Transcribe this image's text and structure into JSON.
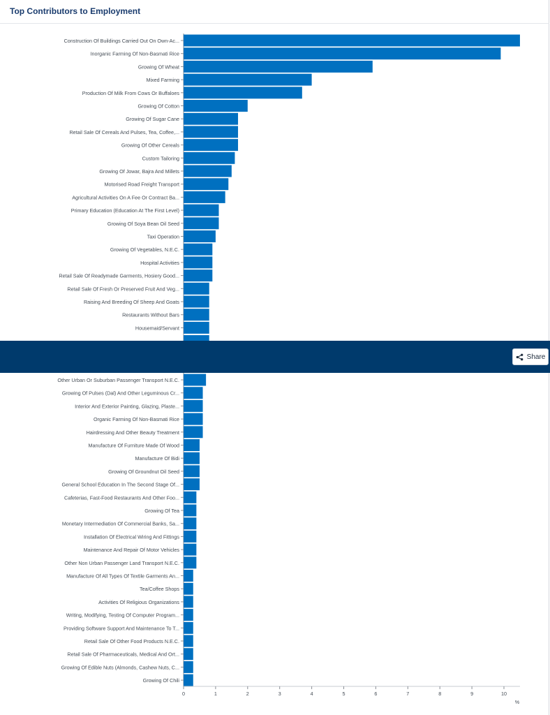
{
  "header": {
    "title": "Top Contributors to Employment"
  },
  "share": {
    "label": "Share",
    "icon": "share-icon"
  },
  "colors": {
    "bar": "#0070c0",
    "banner": "#003a6c",
    "title": "#1a3c6e"
  },
  "chart_data": {
    "type": "bar",
    "orientation": "horizontal",
    "title": "Top Contributors to Employment",
    "xlabel": "%",
    "ylabel": "",
    "xlim": [
      0,
      10.5
    ],
    "xticks": [
      "0",
      "1",
      "2",
      "3",
      "4",
      "5",
      "6",
      "7",
      "8",
      "9",
      "10"
    ],
    "top_categories": [
      "Construction Of Buildings Carried Out On Own-Ac...",
      "Inorganic Farming Of Non-Basmati Rice",
      "Growing Of Wheat",
      "Mixed Farming",
      "Production Of Milk From Cows Or Buffaloes",
      "Growing Of Cotton",
      "Growing Of Sugar Cane",
      "Retail Sale Of Cereals And Pulses, Tea, Coffee,...",
      "Growing Of Other Cereals",
      "Custom Tailoring",
      "Growing Of Jowar, Bajra And Millets",
      "Motorised Road Freight Transport",
      "Agricultural Activities On A Fee Or Contract Ba...",
      "Primary Education (Education At The First Level)",
      "Growing Of Soya Bean Oil Seed",
      "Taxi Operation",
      "Growing Of Vegetables, N.E.C.",
      "Hospital Activities",
      "Retail Sale Of Readymade Garments, Hosiery Good...",
      "Retail Sale Of Fresh Or Preserved Fruit And Veg...",
      "Raising And Breeding Of Sheep And Goats",
      "Restaurants Without Bars",
      "Housemaid/Servant"
    ],
    "top_values": [
      10.5,
      9.9,
      5.9,
      4.0,
      3.7,
      2.0,
      1.7,
      1.7,
      1.7,
      1.6,
      1.5,
      1.4,
      1.3,
      1.1,
      1.1,
      1.0,
      0.9,
      0.9,
      0.9,
      0.8,
      0.8,
      0.8,
      0.8
    ],
    "bottom_categories": [
      "Other Urban Or Suburban Passenger Transport N.E.C.",
      "Growing Of Pulses (Dal) And Other Leguminous Cr...",
      "Interior And Exterior Painting, Glazing, Plaste...",
      "Organic Farming Of Non-Basmati Rice",
      "Hairdressing And Other Beauty Treatment",
      "Manufacture Of Furniture Made Of Wood",
      "Manufacture Of Bidi",
      "Growing Of Groundnut Oil Seed",
      "General School Education In The Second Stage Of...",
      "Cafeterias, Fast-Food Restaurants And Other Foo...",
      "Growing Of Tea",
      "Monetary Intermediation Of Commercial Banks, Sa...",
      "Installation Of Electrical Wiring And Fittings",
      "Maintenance And Repair Of Motor Vehicles",
      "Other Non Urban Passenger Land Transport N.E.C.",
      "Manufacture Of All Types Of Textile Garments An...",
      "Tea/Coffee Shops",
      "Activities Of Religious Organizations",
      "Writing, Modifying, Testing Of Computer Program...",
      "Providing Software Support And Maintenance To T...",
      "Retail Sale Of Other Food Products N.E.C.",
      "Retail Sale Of Pharmaceuticals, Medical And Ort...",
      "Growing Of Edible Nuts (Almonds, Cashew Nuts, C...",
      "Growing Of Chili"
    ],
    "bottom_values": [
      0.7,
      0.6,
      0.6,
      0.6,
      0.6,
      0.5,
      0.5,
      0.5,
      0.5,
      0.4,
      0.4,
      0.4,
      0.4,
      0.4,
      0.4,
      0.3,
      0.3,
      0.3,
      0.3,
      0.3,
      0.3,
      0.3,
      0.3,
      0.3
    ],
    "partial_bar_value": 0.8
  }
}
